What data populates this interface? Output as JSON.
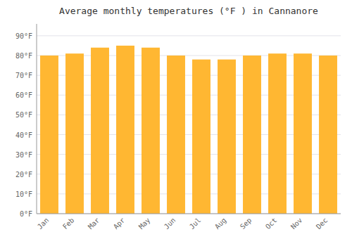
{
  "chart_data": {
    "type": "bar",
    "title": "Average monthly temperatures (°F ) in Cannanore",
    "categories": [
      "Jan",
      "Feb",
      "Mar",
      "Apr",
      "May",
      "Jun",
      "Jul",
      "Aug",
      "Sep",
      "Oct",
      "Nov",
      "Dec"
    ],
    "values": [
      80,
      81,
      84,
      85,
      84,
      80,
      78,
      78,
      80,
      81,
      81,
      80
    ],
    "color": "#FFB732",
    "ylim": [
      0,
      96
    ],
    "yticks": [
      {
        "value": 0,
        "label": "0°F"
      },
      {
        "value": 10,
        "label": "10°F"
      },
      {
        "value": 20,
        "label": "20°F"
      },
      {
        "value": 30,
        "label": "30°F"
      },
      {
        "value": 40,
        "label": "40°F"
      },
      {
        "value": 50,
        "label": "50°F"
      },
      {
        "value": 60,
        "label": "60°F"
      },
      {
        "value": 70,
        "label": "70°F"
      },
      {
        "value": 80,
        "label": "80°F"
      },
      {
        "value": 90,
        "label": "90°F"
      }
    ],
    "grid": true
  }
}
